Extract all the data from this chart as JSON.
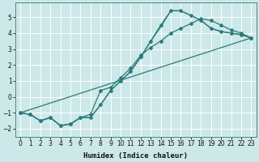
{
  "bg_color": "#cce8e8",
  "grid_color": "#ffffff",
  "line_color": "#2d7a7a",
  "xlabel": "Humidex (Indice chaleur)",
  "xlim": [
    -0.5,
    23.5
  ],
  "ylim": [
    -2.5,
    5.9
  ],
  "yticks": [
    -2,
    -1,
    0,
    1,
    2,
    3,
    4,
    5
  ],
  "xticks": [
    0,
    1,
    2,
    3,
    4,
    5,
    6,
    7,
    8,
    9,
    10,
    11,
    12,
    13,
    14,
    15,
    16,
    17,
    18,
    19,
    20,
    21,
    22,
    23
  ],
  "line1_x": [
    0,
    1,
    2,
    3,
    4,
    5,
    6,
    7,
    8,
    9,
    10,
    11,
    12,
    13,
    14,
    15,
    16,
    17,
    18,
    19,
    20,
    21,
    22,
    23
  ],
  "line1_y": [
    -1.0,
    -1.1,
    -1.5,
    -1.3,
    -1.8,
    -1.7,
    -1.3,
    -1.3,
    -0.5,
    0.4,
    1.0,
    1.6,
    2.5,
    3.5,
    4.5,
    5.4,
    5.4,
    5.1,
    4.8,
    4.3,
    4.1,
    4.0,
    3.9,
    3.7
  ],
  "line2_x": [
    0,
    1,
    2,
    3,
    4,
    5,
    6,
    7,
    8,
    9,
    10,
    11,
    12,
    13,
    14,
    15,
    16,
    17,
    18,
    19,
    20,
    21,
    22,
    23
  ],
  "line2_y": [
    -1.0,
    -1.1,
    -1.5,
    -1.3,
    -1.8,
    -1.7,
    -1.3,
    -1.3,
    -0.5,
    0.4,
    1.0,
    1.6,
    2.5,
    3.5,
    4.4,
    5.4,
    5.4,
    5.1,
    4.8,
    4.3,
    4.1,
    4.0,
    3.9,
    3.7
  ],
  "line3_x": [
    0,
    23
  ],
  "line3_y": [
    -1.0,
    3.7
  ],
  "line4_x": [
    0,
    1,
    2,
    3,
    4,
    5,
    6,
    7,
    8,
    9,
    10,
    11,
    12,
    13,
    14,
    15,
    16,
    17,
    18,
    19,
    20,
    21,
    22,
    23
  ],
  "line4_y": [
    -1.0,
    -1.1,
    -1.5,
    -1.3,
    -1.8,
    -1.7,
    -1.3,
    -1.1,
    0.4,
    0.6,
    1.2,
    1.8,
    2.6,
    3.1,
    3.5,
    4.0,
    4.3,
    4.6,
    4.9,
    4.8,
    4.5,
    4.2,
    4.0,
    3.7
  ]
}
